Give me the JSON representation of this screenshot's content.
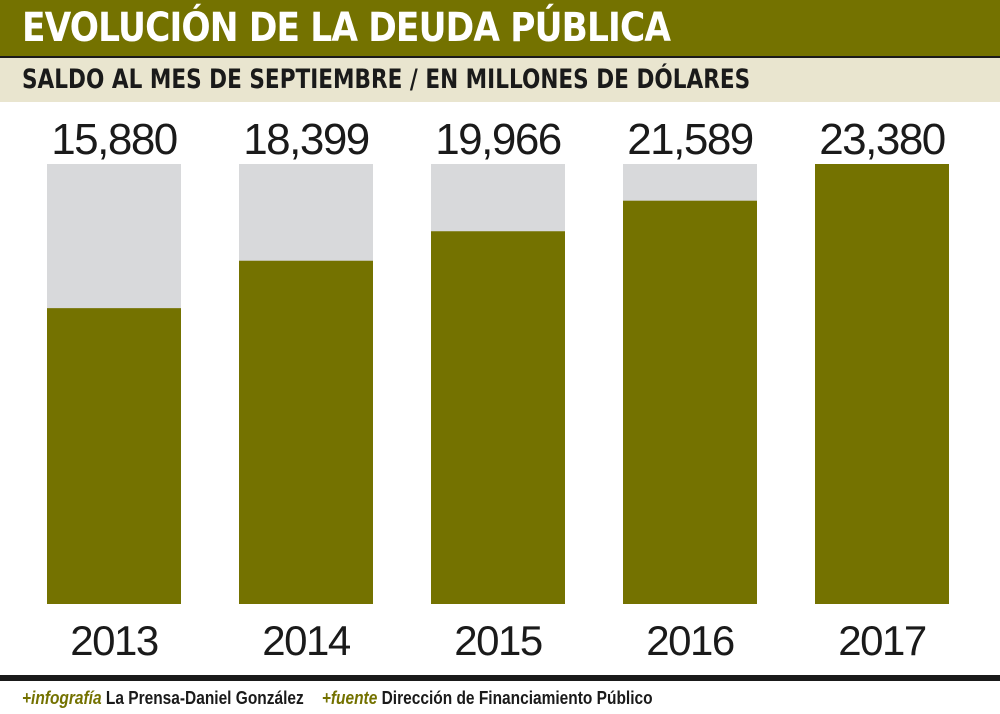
{
  "header": {
    "title": "EVOLUCIÓN DE LA DEUDA PÚBLICA",
    "subtitle": "SALDO AL MES DE SEPTIEMBRE / EN MILLONES DE DÓLARES"
  },
  "chart_data": {
    "type": "bar",
    "categories": [
      "2013",
      "2014",
      "2015",
      "2016",
      "2017"
    ],
    "values": [
      15880,
      18399,
      19966,
      21589,
      23380
    ],
    "value_labels": [
      "15,880",
      "18,399",
      "19,966",
      "21,589",
      "23,380"
    ],
    "ylim": [
      0,
      23380
    ],
    "grid": false,
    "legend": "none",
    "colors": {
      "bar": "#747200",
      "remainder": "#d8d9db",
      "text": "#1a1a1a"
    }
  },
  "footer": {
    "infografia_tag": "+infografía",
    "infografia_value": "La Prensa-Daniel González",
    "fuente_tag": "+fuente",
    "fuente_value": "Dirección de Financiamiento Público"
  }
}
